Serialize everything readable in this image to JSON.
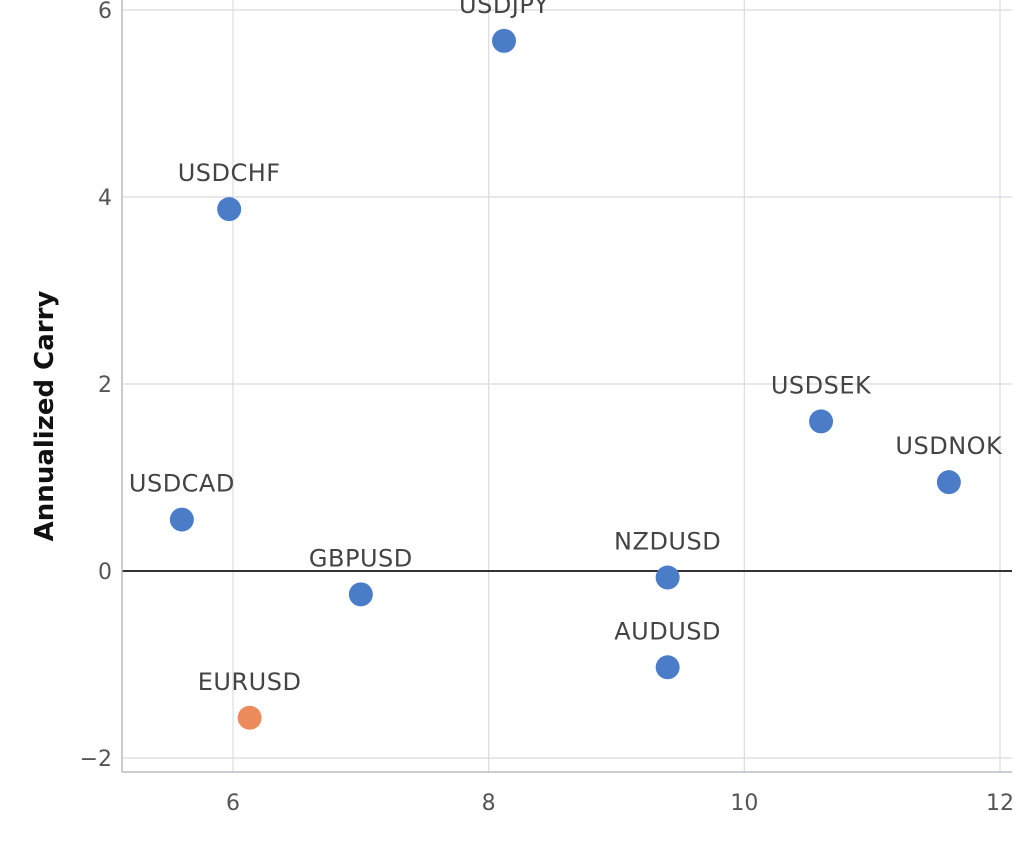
{
  "chart_data": {
    "type": "scatter",
    "title": "",
    "xlabel": "",
    "ylabel": "Annualized Carry",
    "xlim": [
      5.2,
      12.1
    ],
    "ylim": [
      -2.2,
      6.1
    ],
    "x_ticks": [
      6,
      8,
      10,
      12
    ],
    "y_ticks": [
      -2,
      0,
      2,
      4,
      6
    ],
    "grid": true,
    "colors": {
      "default": "#4a7cc7",
      "highlight": "#ec8c5c",
      "zero_line": "#333333",
      "grid": "#d9dbe0"
    },
    "points": [
      {
        "label": "USDJPY",
        "x": 8.12,
        "y": 5.67,
        "color": "#4a7cc7"
      },
      {
        "label": "USDCHF",
        "x": 5.97,
        "y": 3.87,
        "color": "#4a7cc7"
      },
      {
        "label": "USDSEK",
        "x": 10.6,
        "y": 1.6,
        "color": "#4a7cc7"
      },
      {
        "label": "USDNOK",
        "x": 11.6,
        "y": 0.95,
        "color": "#4a7cc7"
      },
      {
        "label": "USDCAD",
        "x": 5.6,
        "y": 0.55,
        "color": "#4a7cc7"
      },
      {
        "label": "NZDUSD",
        "x": 9.4,
        "y": -0.07,
        "color": "#4a7cc7"
      },
      {
        "label": "GBPUSD",
        "x": 7.0,
        "y": -0.25,
        "color": "#4a7cc7"
      },
      {
        "label": "AUDUSD",
        "x": 9.4,
        "y": -1.03,
        "color": "#4a7cc7"
      },
      {
        "label": "EURUSD",
        "x": 6.13,
        "y": -1.57,
        "color": "#ec8c5c"
      }
    ]
  }
}
